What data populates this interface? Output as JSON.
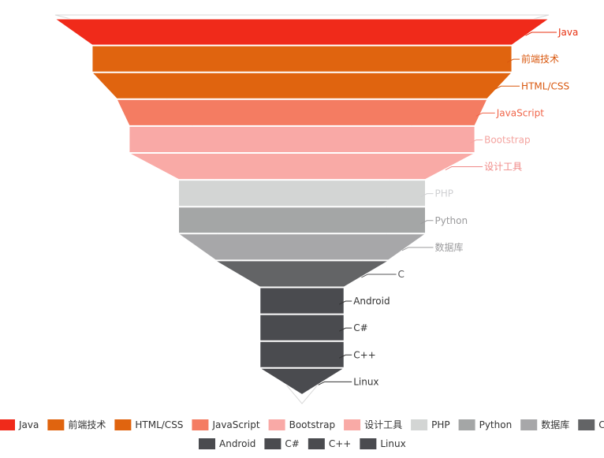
{
  "chart_data": {
    "type": "funnel",
    "title": "",
    "categories": [
      "Java",
      "前端技术",
      "HTML/CSS",
      "JavaScript",
      "Bootstrap",
      "设计工具",
      "PHP",
      "Python",
      "数据库",
      "C",
      "Android",
      "C#",
      "C++",
      "Linux"
    ],
    "values": [
      100,
      85,
      85,
      75,
      70,
      70,
      50,
      50,
      50,
      35,
      17,
      17,
      17,
      17
    ],
    "max": 100,
    "colors": [
      "#f02a1a",
      "#e0640f",
      "#e0640f",
      "#f47c62",
      "#f9a9a6",
      "#f9aaa6",
      "#d3d5d4",
      "#a4a6a6",
      "#a7a7a9",
      "#636466",
      "#4a4b4f",
      "#4a4b4f",
      "#4a4b4f",
      "#4a4b4f"
    ],
    "label_colors": [
      "#e83212",
      "#d9580f",
      "#d9580f",
      "#f06448",
      "#f4a4a0",
      "#f08a88",
      "#cfd0d2",
      "#9a9a9c",
      "#9a9a9c",
      "#555557",
      "#333333",
      "#333333",
      "#333333",
      "#333333"
    ],
    "legend": {
      "row1": [
        "Java",
        "前端技术",
        "HTML/CSS",
        "JavaScript",
        "Bootstrap",
        "设计工具",
        "PHP",
        "Python",
        "数据库",
        "C"
      ],
      "row2": [
        "Android",
        "C#",
        "C++",
        "Linux"
      ]
    }
  }
}
